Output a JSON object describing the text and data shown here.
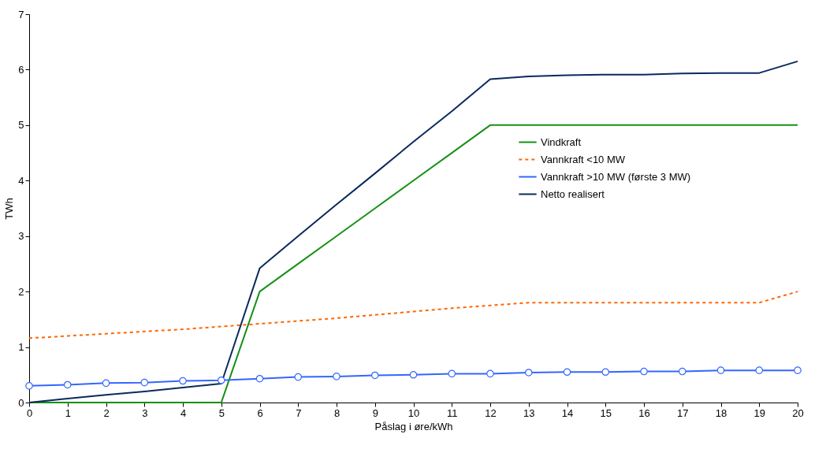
{
  "chart_data": {
    "type": "line",
    "xlabel": "Påslag i øre/kWh",
    "ylabel": "TWh",
    "x": [
      0,
      1,
      2,
      3,
      4,
      5,
      6,
      7,
      8,
      9,
      10,
      11,
      12,
      13,
      14,
      15,
      16,
      17,
      18,
      19,
      20
    ],
    "xlim": [
      0,
      20
    ],
    "xticks": [
      0,
      1,
      2,
      3,
      4,
      5,
      6,
      7,
      8,
      9,
      10,
      11,
      12,
      13,
      14,
      15,
      16,
      17,
      18,
      19,
      20
    ],
    "ylim": [
      0,
      7
    ],
    "yticks": [
      0,
      1,
      2,
      3,
      4,
      5,
      6,
      7
    ],
    "grid": false,
    "legend": "right",
    "series": [
      {
        "name": "Vindkraft",
        "color": "#169016",
        "line_style": "solid",
        "marker": "none",
        "values": [
          0,
          0,
          0,
          0,
          0,
          0,
          2,
          2.5,
          3,
          3.5,
          4,
          4.5,
          5,
          5,
          5,
          5,
          5,
          5,
          5,
          5,
          5
        ]
      },
      {
        "name": "Vannkraft <10 MW",
        "color": "#ff6600",
        "line_style": "dashed",
        "marker": "none",
        "values": [
          1.16,
          1.2,
          1.24,
          1.28,
          1.32,
          1.37,
          1.42,
          1.47,
          1.52,
          1.58,
          1.64,
          1.7,
          1.75,
          1.8,
          1.8,
          1.8,
          1.8,
          1.8,
          1.8,
          1.8,
          2.0
        ]
      },
      {
        "name": "Vannkraft >10 MW (første 3 MW)",
        "color": "#3366ff",
        "line_style": "solid",
        "marker": "circle",
        "values": [
          0.3,
          0.32,
          0.35,
          0.36,
          0.39,
          0.4,
          0.43,
          0.46,
          0.47,
          0.49,
          0.5,
          0.52,
          0.52,
          0.54,
          0.55,
          0.55,
          0.56,
          0.56,
          0.58,
          0.58,
          0.58
        ]
      },
      {
        "name": "Netto realisert",
        "color": "#0a2a5c",
        "line_style": "solid",
        "marker": "none",
        "values": [
          0,
          0.07,
          0.14,
          0.2,
          0.27,
          0.34,
          2.42,
          3.0,
          3.57,
          4.13,
          4.7,
          5.25,
          5.83,
          5.88,
          5.9,
          5.91,
          5.91,
          5.93,
          5.94,
          5.94,
          6.15
        ]
      }
    ]
  }
}
